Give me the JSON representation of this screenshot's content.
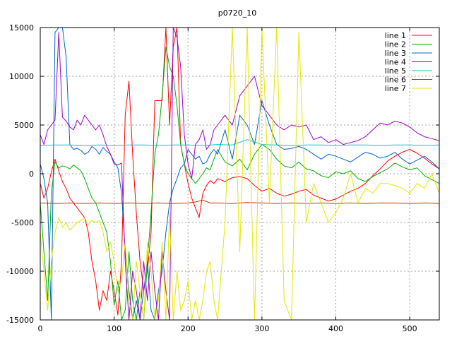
{
  "chart_data": {
    "type": "line",
    "title": "p0720_10",
    "xlabel": "",
    "ylabel": "",
    "xlim": [
      0,
      540
    ],
    "ylim": [
      -15000,
      15000
    ],
    "x_ticks": [
      0,
      100,
      200,
      300,
      400,
      500
    ],
    "y_ticks": [
      -15000,
      -10000,
      -5000,
      0,
      5000,
      10000,
      15000
    ],
    "x_tick_labels": [
      "0",
      "100",
      "200",
      "300",
      "400",
      "500"
    ],
    "y_tick_labels": [
      "-15000",
      "-10000",
      "-5000",
      "0",
      "5000",
      "10000",
      "15000"
    ],
    "grid": true,
    "legend_position": "top-right",
    "series": [
      {
        "name": "line 1",
        "color": "#ff0000",
        "x": [
          0,
          5,
          10,
          15,
          20,
          25,
          30,
          35,
          40,
          45,
          50,
          55,
          60,
          65,
          70,
          75,
          80,
          85,
          90,
          95,
          100,
          105,
          110,
          115,
          120,
          125,
          130,
          135,
          140,
          145,
          150,
          155,
          160,
          165,
          170,
          175,
          180,
          185,
          190,
          195,
          200,
          205,
          210,
          215,
          220,
          225,
          230,
          235,
          240,
          250,
          260,
          270,
          280,
          290,
          300,
          310,
          320,
          330,
          340,
          350,
          360,
          370,
          380,
          390,
          400,
          410,
          420,
          430,
          440,
          450,
          460,
          470,
          480,
          490,
          500,
          510,
          520,
          530,
          540
        ],
        "y": [
          -1000,
          -2500,
          -1500,
          200,
          1500,
          300,
          -800,
          -1500,
          -2500,
          -3000,
          -3500,
          -4000,
          -4500,
          -6000,
          -9000,
          -11000,
          -14000,
          -12000,
          -13000,
          -10000,
          -12000,
          -14500,
          -9000,
          6000,
          9500,
          2000,
          -4000,
          -9000,
          -12000,
          -10000,
          -6000,
          7500,
          7500,
          7500,
          15000,
          5000,
          13000,
          15000,
          3000,
          1000,
          -1000,
          -2500,
          -3500,
          -4500,
          -2000,
          -1200,
          -700,
          -1000,
          -500,
          -800,
          -400,
          -300,
          -500,
          -1200,
          -1800,
          -1500,
          -2000,
          -2300,
          -2100,
          -1800,
          -1600,
          -2200,
          -2500,
          -2800,
          -2600,
          -2200,
          -1800,
          -1500,
          -1000,
          -200,
          500,
          1300,
          1800,
          2200,
          2500,
          2100,
          1600,
          1000,
          500
        ]
      },
      {
        "name": "line 2",
        "color": "#00b000",
        "x": [
          0,
          5,
          10,
          15,
          20,
          25,
          30,
          35,
          40,
          45,
          50,
          55,
          60,
          65,
          70,
          75,
          80,
          85,
          90,
          95,
          100,
          105,
          110,
          115,
          120,
          125,
          130,
          135,
          140,
          145,
          150,
          155,
          160,
          165,
          170,
          175,
          180,
          185,
          190,
          195,
          200,
          205,
          210,
          215,
          220,
          225,
          230,
          235,
          240,
          250,
          260,
          270,
          280,
          290,
          300,
          310,
          320,
          330,
          340,
          350,
          360,
          370,
          380,
          390,
          400,
          410,
          420,
          430,
          440,
          450,
          460,
          470,
          480,
          490,
          500,
          510,
          520,
          530,
          540
        ],
        "y": [
          -3000,
          -8000,
          -13000,
          -2000,
          1200,
          600,
          800,
          700,
          500,
          900,
          600,
          300,
          -500,
          -1500,
          -2500,
          -3000,
          -4000,
          -5000,
          -6000,
          -9000,
          -13500,
          -11000,
          -15000,
          -14000,
          -8000,
          -13000,
          -15000,
          -12000,
          -15000,
          -9000,
          -4000,
          2000,
          4000,
          8000,
          13000,
          11000,
          10000,
          7000,
          3000,
          1000,
          0,
          -500,
          -1000,
          -500,
          0,
          600,
          400,
          1500,
          2500,
          1200,
          800,
          1500,
          400,
          2000,
          3000,
          2500,
          1500,
          800,
          600,
          1200,
          500,
          300,
          -200,
          -400,
          200,
          0,
          300,
          -500,
          -800,
          -300,
          100,
          500,
          1100,
          700,
          400,
          600,
          -200,
          -600,
          -1000
        ]
      },
      {
        "name": "line 3",
        "color": "#0064c8",
        "x": [
          0,
          5,
          10,
          15,
          20,
          25,
          30,
          35,
          40,
          45,
          50,
          55,
          60,
          65,
          70,
          75,
          80,
          85,
          90,
          95,
          100,
          105,
          110,
          115,
          120,
          125,
          130,
          135,
          140,
          145,
          150,
          155,
          160,
          165,
          170,
          175,
          180,
          185,
          190,
          195,
          200,
          205,
          210,
          215,
          220,
          225,
          230,
          235,
          240,
          250,
          260,
          270,
          280,
          290,
          300,
          310,
          320,
          330,
          340,
          350,
          360,
          370,
          380,
          390,
          400,
          410,
          420,
          430,
          440,
          450,
          460,
          470,
          480,
          490,
          500,
          510,
          520,
          530,
          540
        ],
        "y": [
          1000,
          -500,
          -3000,
          -15000,
          14500,
          15000,
          15000,
          12000,
          3000,
          2500,
          2600,
          2400,
          2000,
          2200,
          2800,
          2500,
          2000,
          2700,
          2300,
          2000,
          1200,
          600,
          -2000,
          -8000,
          -12000,
          -15000,
          -13000,
          -15000,
          -12000,
          -9000,
          -14000,
          -15000,
          -12000,
          -10000,
          -6000,
          -3000,
          -1500,
          -500,
          600,
          1000,
          2500,
          2000,
          1500,
          1800,
          1000,
          1200,
          2000,
          2500,
          2000,
          4500,
          1500,
          6000,
          5000,
          3000,
          7500,
          5000,
          3000,
          2500,
          2600,
          2800,
          2500,
          2000,
          1500,
          2000,
          1800,
          1500,
          1200,
          1700,
          2200,
          2000,
          1600,
          1800,
          2200,
          1500,
          1000,
          1400,
          1800,
          1200,
          500
        ]
      },
      {
        "name": "line 4",
        "color": "#a000c8",
        "x": [
          0,
          5,
          10,
          15,
          20,
          25,
          30,
          35,
          40,
          45,
          50,
          55,
          60,
          65,
          70,
          75,
          80,
          85,
          90,
          95,
          100,
          105,
          110,
          115,
          120,
          125,
          130,
          135,
          140,
          145,
          150,
          155,
          160,
          165,
          170,
          175,
          180,
          185,
          190,
          195,
          200,
          205,
          210,
          215,
          220,
          225,
          230,
          235,
          240,
          250,
          260,
          270,
          280,
          290,
          300,
          310,
          320,
          330,
          340,
          350,
          360,
          370,
          380,
          390,
          400,
          410,
          420,
          430,
          440,
          450,
          460,
          470,
          480,
          490,
          500,
          510,
          520,
          530,
          540
        ],
        "y": [
          4000,
          3000,
          4500,
          5000,
          5500,
          14500,
          5800,
          5400,
          4800,
          4500,
          5500,
          5000,
          6000,
          5500,
          5000,
          4500,
          5000,
          4000,
          2800,
          2000,
          1000,
          900,
          1100,
          -9000,
          -15000,
          -10000,
          -12000,
          -15000,
          -9000,
          -13000,
          -8000,
          -12000,
          -15000,
          -8000,
          -12000,
          -15000,
          15000,
          14000,
          11000,
          4000,
          1000,
          -500,
          3000,
          3500,
          4500,
          2500,
          3000,
          4500,
          5000,
          6000,
          5000,
          8000,
          9000,
          10000,
          7000,
          6000,
          5000,
          4500,
          5000,
          4800,
          5000,
          3500,
          3800,
          3200,
          3500,
          3000,
          3200,
          3400,
          3800,
          4500,
          5200,
          5000,
          5400,
          5200,
          4800,
          4200,
          3800,
          3600,
          3400
        ]
      },
      {
        "name": "line 5",
        "color": "#00c8c8",
        "x": [
          0,
          20,
          40,
          60,
          80,
          100,
          120,
          140,
          160,
          180,
          200,
          220,
          240,
          260,
          280,
          300,
          320,
          340,
          360,
          380,
          400,
          420,
          440,
          460,
          480,
          500,
          520,
          540
        ],
        "y": [
          2900,
          2950,
          2950,
          2900,
          2950,
          2900,
          2950,
          2950,
          2900,
          2950,
          2950,
          2900,
          3000,
          2950,
          3500,
          3000,
          2950,
          2900,
          2950,
          2950,
          2900,
          2950,
          2950,
          2900,
          2950,
          2950,
          2900,
          2950
        ]
      },
      {
        "name": "line 6",
        "color": "#c83200",
        "x": [
          0,
          20,
          40,
          60,
          80,
          100,
          120,
          140,
          160,
          180,
          200,
          210,
          220,
          230,
          240,
          260,
          280,
          300,
          320,
          340,
          360,
          380,
          400,
          420,
          440,
          460,
          480,
          500,
          520,
          540
        ],
        "y": [
          -3000,
          -3050,
          -3000,
          -3050,
          -3000,
          -3050,
          -3000,
          -3050,
          -3000,
          -3050,
          -3000,
          -2900,
          -2700,
          -3000,
          -3000,
          -3050,
          -2950,
          -3000,
          -3050,
          -3000,
          -3050,
          -3000,
          -3050,
          -3000,
          -3050,
          -3000,
          -3000,
          -3050,
          -3000,
          -3050
        ]
      },
      {
        "name": "line 7",
        "color": "#e6e600",
        "x": [
          0,
          5,
          10,
          15,
          20,
          25,
          30,
          35,
          40,
          45,
          50,
          55,
          60,
          65,
          70,
          75,
          80,
          85,
          90,
          95,
          100,
          105,
          110,
          115,
          120,
          125,
          130,
          135,
          140,
          145,
          150,
          155,
          160,
          165,
          170,
          175,
          180,
          185,
          190,
          195,
          200,
          205,
          210,
          215,
          220,
          225,
          230,
          235,
          240,
          250,
          260,
          270,
          280,
          290,
          300,
          310,
          320,
          330,
          340,
          350,
          360,
          370,
          380,
          390,
          400,
          410,
          420,
          430,
          440,
          450,
          460,
          470,
          480,
          490,
          500,
          510,
          520,
          530,
          540
        ],
        "y": [
          -6000,
          -10000,
          -14000,
          -9000,
          -6000,
          -4500,
          -5500,
          -5000,
          -5800,
          -5400,
          -5000,
          -4800,
          -4500,
          -5200,
          -4800,
          -5000,
          -4800,
          -6000,
          -8000,
          -7000,
          -9000,
          -12000,
          -11000,
          -7000,
          -13000,
          -15000,
          -9000,
          -12000,
          -15000,
          -7000,
          -10000,
          -15000,
          -13000,
          -7000,
          -15000,
          -4000,
          -15000,
          -10000,
          -14000,
          -13000,
          -11000,
          -15000,
          -13000,
          -15000,
          -13000,
          -10000,
          -9000,
          -13000,
          -15000,
          -5000,
          15000,
          -8000,
          15000,
          -15000,
          15000,
          -3000,
          15000,
          -13000,
          -15000,
          14500,
          -5000,
          -1000,
          -3000,
          -5000,
          -4000,
          -2500,
          0,
          -3000,
          -1500,
          -2000,
          -1000,
          -1000,
          -1200,
          -1500,
          -2000,
          -1000,
          -1500,
          0,
          -2000
        ]
      }
    ]
  }
}
